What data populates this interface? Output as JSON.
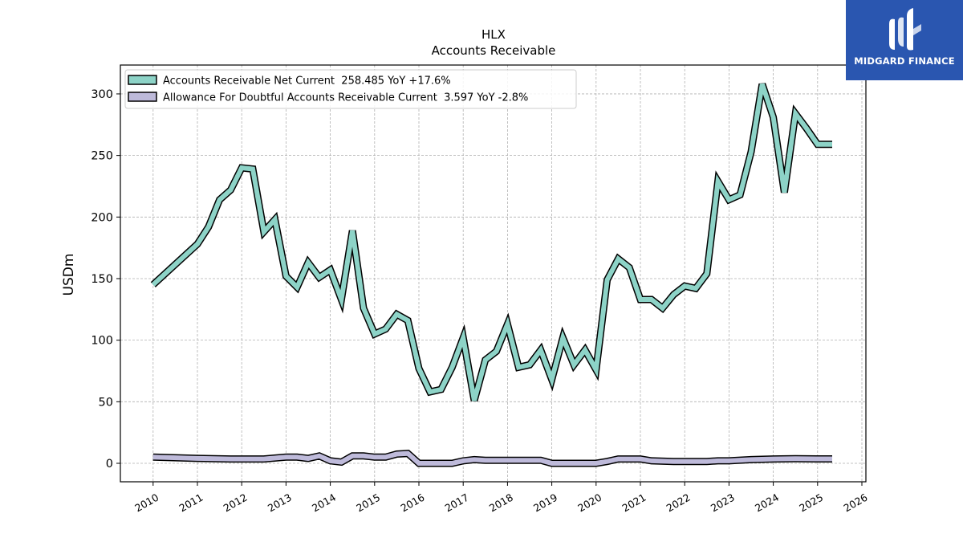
{
  "chart_data": {
    "type": "line",
    "title": "HLX",
    "subtitle": "Accounts Receivable",
    "ylabel": "USDm",
    "xlabel": "",
    "xlim": [
      2009.25,
      2026.0
    ],
    "ylim": [
      -15,
      323
    ],
    "x_ticks": [
      "2010",
      "2011",
      "2012",
      "2013",
      "2014",
      "2015",
      "2016",
      "2017",
      "2018",
      "2019",
      "2020",
      "2021",
      "2022",
      "2023",
      "2024",
      "2025",
      "2026"
    ],
    "y_ticks": [
      0,
      50,
      100,
      150,
      200,
      250,
      300
    ],
    "grid": true,
    "legend_position": "top-left",
    "series": [
      {
        "name": "Accounts Receivable Net Current  258.485 YoY +17.6%",
        "color": "#8dd3c7",
        "points": [
          [
            2010.0,
            145
          ],
          [
            2011.0,
            178
          ],
          [
            2011.25,
            192
          ],
          [
            2011.5,
            214
          ],
          [
            2011.75,
            222
          ],
          [
            2012.0,
            240
          ],
          [
            2012.25,
            239
          ],
          [
            2012.5,
            188
          ],
          [
            2012.75,
            198
          ],
          [
            2013.0,
            152
          ],
          [
            2013.25,
            143
          ],
          [
            2013.5,
            163
          ],
          [
            2013.75,
            151
          ],
          [
            2014.0,
            157
          ],
          [
            2014.25,
            133
          ],
          [
            2014.5,
            189
          ],
          [
            2014.75,
            126
          ],
          [
            2015.0,
            105
          ],
          [
            2015.25,
            109
          ],
          [
            2015.5,
            121
          ],
          [
            2015.75,
            116
          ],
          [
            2016.0,
            77
          ],
          [
            2016.25,
            58
          ],
          [
            2016.5,
            60
          ],
          [
            2016.75,
            78
          ],
          [
            2017.0,
            102
          ],
          [
            2017.25,
            51
          ],
          [
            2017.5,
            84
          ],
          [
            2017.75,
            91
          ],
          [
            2018.0,
            113
          ],
          [
            2018.25,
            78
          ],
          [
            2018.5,
            80
          ],
          [
            2018.75,
            92
          ],
          [
            2019.0,
            68
          ],
          [
            2019.25,
            102
          ],
          [
            2019.5,
            80
          ],
          [
            2019.75,
            92
          ],
          [
            2020.0,
            76
          ],
          [
            2020.25,
            149
          ],
          [
            2020.5,
            166
          ],
          [
            2020.75,
            159
          ],
          [
            2021.0,
            133
          ],
          [
            2021.25,
            133
          ],
          [
            2021.5,
            126
          ],
          [
            2021.75,
            137
          ],
          [
            2022.0,
            144
          ],
          [
            2022.25,
            142
          ],
          [
            2022.5,
            154
          ],
          [
            2022.75,
            229
          ],
          [
            2023.0,
            214
          ],
          [
            2023.25,
            218
          ],
          [
            2023.5,
            253
          ],
          [
            2023.75,
            308
          ],
          [
            2024.0,
            281
          ],
          [
            2024.25,
            220
          ],
          [
            2024.5,
            284
          ],
          [
            2024.75,
            272
          ],
          [
            2025.0,
            259
          ],
          [
            2025.33,
            259
          ]
        ]
      },
      {
        "name": "Allowance For Doubtful Accounts Receivable Current  3.597 YoY -2.8%",
        "color": "#bebada",
        "points": [
          [
            2010.0,
            5
          ],
          [
            2011.0,
            4
          ],
          [
            2011.75,
            3.5
          ],
          [
            2012.5,
            3.5
          ],
          [
            2013.0,
            5
          ],
          [
            2013.25,
            5
          ],
          [
            2013.5,
            4
          ],
          [
            2013.75,
            6
          ],
          [
            2014.0,
            2
          ],
          [
            2014.25,
            1
          ],
          [
            2014.5,
            6
          ],
          [
            2014.75,
            6
          ],
          [
            2015.0,
            5
          ],
          [
            2015.25,
            5
          ],
          [
            2015.5,
            7.5
          ],
          [
            2015.75,
            8
          ],
          [
            2016.0,
            0
          ],
          [
            2016.5,
            0
          ],
          [
            2016.75,
            0
          ],
          [
            2017.0,
            2
          ],
          [
            2017.25,
            3
          ],
          [
            2017.5,
            2.5
          ],
          [
            2018.0,
            2.5
          ],
          [
            2018.5,
            2.5
          ],
          [
            2018.75,
            2.5
          ],
          [
            2019.0,
            0
          ],
          [
            2019.5,
            0
          ],
          [
            2020.0,
            0
          ],
          [
            2020.25,
            1.5
          ],
          [
            2020.5,
            3.5
          ],
          [
            2021.0,
            3.5
          ],
          [
            2021.25,
            2
          ],
          [
            2021.75,
            1.5
          ],
          [
            2022.25,
            1.5
          ],
          [
            2022.5,
            1.5
          ],
          [
            2022.75,
            2
          ],
          [
            2023.0,
            2
          ],
          [
            2023.5,
            3
          ],
          [
            2024.0,
            3.5
          ],
          [
            2024.5,
            3.7
          ],
          [
            2025.0,
            3.6
          ],
          [
            2025.33,
            3.6
          ]
        ]
      }
    ]
  },
  "branding": {
    "logo_text": "MIDGARD FINANCE",
    "logo_icon": "midgard-logo-icon",
    "logo_bg": "#2a56b0"
  }
}
